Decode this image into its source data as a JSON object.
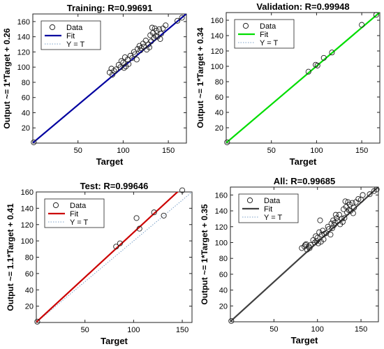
{
  "chart_data": [
    {
      "type": "scatter",
      "title": "Training: R=0.99691",
      "xlabel": "Target",
      "ylabel": "Output ~= 1*Target + 0.26",
      "xlim": [
        0,
        170
      ],
      "ylim": [
        0,
        170
      ],
      "xticks": [
        50,
        100,
        150
      ],
      "yticks": [
        20,
        40,
        60,
        80,
        100,
        120,
        140,
        160
      ],
      "fit_color": "#0000a0",
      "fit": {
        "slope": 1,
        "intercept": 0.26
      },
      "legend": [
        "Data",
        "Fit",
        "Y = T"
      ],
      "legend_position": "top-left",
      "points": [
        [
          1,
          1
        ],
        [
          85,
          93
        ],
        [
          87,
          98
        ],
        [
          88,
          90
        ],
        [
          90,
          95
        ],
        [
          92,
          97
        ],
        [
          95,
          103
        ],
        [
          97,
          100
        ],
        [
          98,
          108
        ],
        [
          100,
          106
        ],
        [
          101,
          99
        ],
        [
          102,
          113
        ],
        [
          103,
          101
        ],
        [
          105,
          110
        ],
        [
          106,
          104
        ],
        [
          108,
          115
        ],
        [
          110,
          112
        ],
        [
          112,
          120
        ],
        [
          113,
          117
        ],
        [
          115,
          110
        ],
        [
          116,
          124
        ],
        [
          118,
          128
        ],
        [
          119,
          122
        ],
        [
          120,
          125
        ],
        [
          122,
          131
        ],
        [
          123,
          127
        ],
        [
          125,
          135
        ],
        [
          126,
          123
        ],
        [
          128,
          130
        ],
        [
          129,
          126
        ],
        [
          130,
          142
        ],
        [
          131,
          134
        ],
        [
          132,
          152
        ],
        [
          133,
          145
        ],
        [
          134,
          138
        ],
        [
          135,
          151
        ],
        [
          136,
          141
        ],
        [
          137,
          148
        ],
        [
          138,
          140
        ],
        [
          140,
          150
        ],
        [
          141,
          137
        ],
        [
          142,
          144
        ],
        [
          144,
          151
        ],
        [
          147,
          155
        ],
        [
          160,
          161
        ],
        [
          165,
          165
        ]
      ]
    },
    {
      "type": "scatter",
      "title": "Validation: R=0.99948",
      "xlabel": "Target",
      "ylabel": "Output ~= 1*Target + 0.34",
      "xlim": [
        0,
        170
      ],
      "ylim": [
        0,
        170
      ],
      "xticks": [
        50,
        100,
        150
      ],
      "yticks": [
        20,
        40,
        60,
        80,
        100,
        120,
        140,
        160
      ],
      "fit_color": "#00dd00",
      "fit": {
        "slope": 1,
        "intercept": 0.34
      },
      "legend": [
        "Data",
        "Fit",
        "Y = T"
      ],
      "legend_position": "top-left",
      "points": [
        [
          1,
          1
        ],
        [
          91,
          93
        ],
        [
          99,
          102
        ],
        [
          101,
          101
        ],
        [
          108,
          111
        ],
        [
          117,
          118
        ],
        [
          150,
          154
        ],
        [
          166,
          167
        ]
      ]
    },
    {
      "type": "scatter",
      "title": "Test: R=0.99646",
      "xlabel": "Target",
      "ylabel": "Output ~= 1.1*Target + 0.41",
      "xlim": [
        0,
        160
      ],
      "ylim": [
        0,
        160
      ],
      "xticks": [
        50,
        100,
        150
      ],
      "yticks": [
        20,
        40,
        60,
        80,
        100,
        120,
        140,
        160
      ],
      "fit_color": "#cc0000",
      "fit": {
        "slope": 1.1,
        "intercept": 0.41
      },
      "legend": [
        "Data",
        "Fit",
        "Y = T"
      ],
      "legend_position": "top-left",
      "points": [
        [
          1,
          1
        ],
        [
          82,
          93
        ],
        [
          86,
          97
        ],
        [
          103,
          128
        ],
        [
          106,
          115
        ],
        [
          121,
          135
        ],
        [
          131,
          131
        ],
        [
          150,
          162
        ]
      ]
    },
    {
      "type": "scatter",
      "title": "All: R=0.99685",
      "xlabel": "Target",
      "ylabel": "Output ~= 1*Target + 0.35",
      "xlim": [
        0,
        170
      ],
      "ylim": [
        0,
        170
      ],
      "xticks": [
        50,
        100,
        150
      ],
      "yticks": [
        20,
        40,
        60,
        80,
        100,
        120,
        140,
        160
      ],
      "fit_color": "#404040",
      "fit": {
        "slope": 1,
        "intercept": 0.35
      },
      "legend": [
        "Data",
        "Fit",
        "Y = T"
      ],
      "legend_position": "top-left",
      "points": [
        [
          1,
          1
        ],
        [
          82,
          93
        ],
        [
          85,
          95
        ],
        [
          86,
          97
        ],
        [
          87,
          98
        ],
        [
          88,
          91
        ],
        [
          90,
          95
        ],
        [
          91,
          93
        ],
        [
          92,
          97
        ],
        [
          95,
          103
        ],
        [
          97,
          100
        ],
        [
          98,
          108
        ],
        [
          99,
          102
        ],
        [
          100,
          106
        ],
        [
          101,
          99
        ],
        [
          102,
          113
        ],
        [
          103,
          128
        ],
        [
          104,
          101
        ],
        [
          105,
          110
        ],
        [
          106,
          115
        ],
        [
          107,
          104
        ],
        [
          108,
          111
        ],
        [
          110,
          112
        ],
        [
          112,
          120
        ],
        [
          113,
          117
        ],
        [
          115,
          110
        ],
        [
          116,
          124
        ],
        [
          117,
          118
        ],
        [
          118,
          128
        ],
        [
          119,
          122
        ],
        [
          120,
          125
        ],
        [
          121,
          135
        ],
        [
          122,
          131
        ],
        [
          123,
          127
        ],
        [
          125,
          135
        ],
        [
          126,
          123
        ],
        [
          128,
          130
        ],
        [
          129,
          126
        ],
        [
          130,
          142
        ],
        [
          131,
          131
        ],
        [
          132,
          152
        ],
        [
          133,
          145
        ],
        [
          134,
          138
        ],
        [
          135,
          151
        ],
        [
          136,
          141
        ],
        [
          137,
          148
        ],
        [
          138,
          140
        ],
        [
          140,
          150
        ],
        [
          141,
          137
        ],
        [
          142,
          144
        ],
        [
          144,
          151
        ],
        [
          147,
          155
        ],
        [
          150,
          154
        ],
        [
          152,
          160
        ],
        [
          160,
          161
        ],
        [
          165,
          165
        ],
        [
          168,
          167
        ]
      ]
    }
  ]
}
